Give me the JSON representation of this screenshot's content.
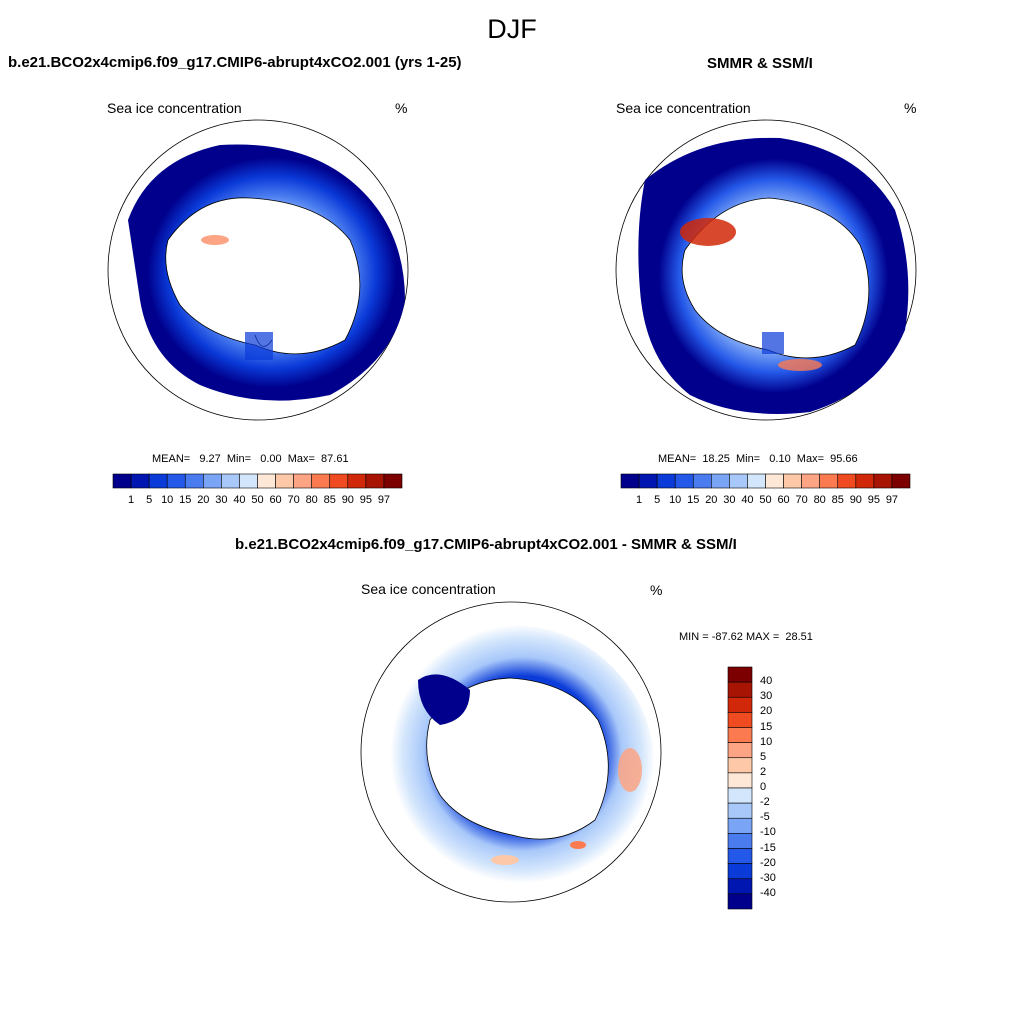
{
  "figure": {
    "title": "DJF",
    "panel_left": {
      "title": "b.e21.BCO2x4cmip6.f09_g17.CMIP6-abrupt4xCO2.001 (yrs 1-25)",
      "variable": "Sea ice concentration",
      "units": "%",
      "stats": "MEAN=   9.27  Min=   0.00  Max=  87.61"
    },
    "panel_right": {
      "title": "SMMR & SSM/I",
      "variable": "Sea ice concentration",
      "units": "%",
      "stats": "MEAN=  18.25  Min=   0.10  Max=  95.66"
    },
    "panel_diff": {
      "title": "b.e21.BCO2x4cmip6.f09_g17.CMIP6-abrupt4xCO2.001 - SMMR & SSM/I",
      "variable": "Sea ice concentration",
      "units": "%",
      "stats": "MIN = -87.62 MAX =  28.51"
    },
    "conc_colorbar": {
      "labels": [
        "1",
        "5",
        "10",
        "15",
        "20",
        "30",
        "40",
        "50",
        "60",
        "70",
        "80",
        "85",
        "90",
        "95",
        "97"
      ],
      "colors": [
        "#00008c",
        "#0016b0",
        "#0a3ad8",
        "#2458e8",
        "#4a7cf0",
        "#7aa4f6",
        "#a8c8fa",
        "#d4e6fc",
        "#fde8d8",
        "#fcc8a8",
        "#fca484",
        "#fc7a50",
        "#f04a20",
        "#d02808",
        "#a81404",
        "#7c0000"
      ]
    },
    "diff_colorbar": {
      "labels": [
        "40",
        "30",
        "20",
        "15",
        "10",
        "5",
        "2",
        "0",
        "-2",
        "-5",
        "-10",
        "-15",
        "-20",
        "-30",
        "-40"
      ],
      "colors": [
        "#7c0000",
        "#a81404",
        "#d02808",
        "#f04a20",
        "#fc7a50",
        "#fca484",
        "#fcc8a8",
        "#fde8d8",
        "#d4e6fc",
        "#a8c8fa",
        "#7aa4f6",
        "#4a7cf0",
        "#2458e8",
        "#0a3ad8",
        "#0016b0",
        "#00008c"
      ]
    }
  }
}
